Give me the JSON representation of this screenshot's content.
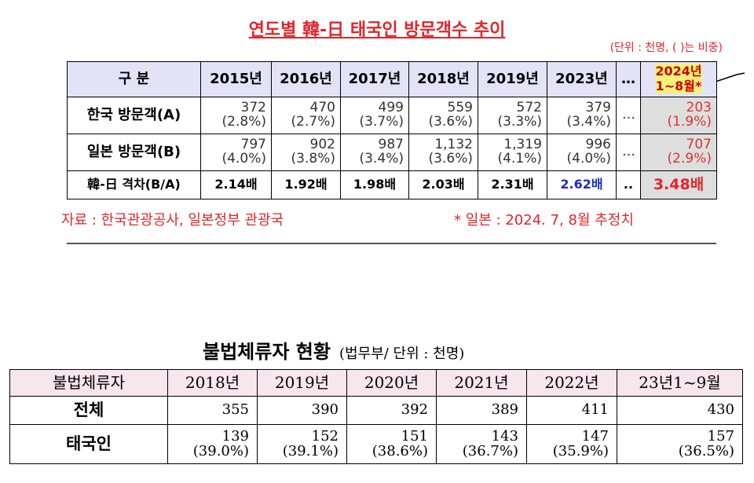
{
  "table1": {
    "title": "연도별 韓-日 태국인 방문객수 추이",
    "unit": "(단위 : 천명, ( )는 비중)",
    "header": [
      "구 분",
      "2015년",
      "2016년",
      "2017년",
      "2018년",
      "2019년",
      "2023년",
      "…",
      "2024년 1~8월*"
    ],
    "rows": [
      {
        "label": "한국 방문객(A)",
        "cells": [
          {
            "count": "372",
            "share": "(2.8%)"
          },
          {
            "count": "470",
            "share": "(2.7%)"
          },
          {
            "count": "499",
            "share": "(3.7%)"
          },
          {
            "count": "559",
            "share": "(3.6%)"
          },
          {
            "count": "572",
            "share": "(3.3%)"
          },
          {
            "count": "379",
            "share": "(3.4%)"
          },
          "…",
          {
            "count": "203",
            "share": "(1.9%)"
          }
        ]
      },
      {
        "label": "일본 방문객(B)",
        "cells": [
          {
            "count": "797",
            "share": "(4.0%)"
          },
          {
            "count": "902",
            "share": "(3.8%)"
          },
          {
            "count": "987",
            "share": "(3.4%)"
          },
          {
            "count": "1,132",
            "share": "(3.6%)"
          },
          {
            "count": "1,319",
            "share": "(4.1%)"
          },
          {
            "count": "996",
            "share": "(4.0%)"
          },
          "…",
          {
            "count": "707",
            "share": "(2.9%)"
          }
        ]
      },
      {
        "label": "韓-日 격차(B/A)",
        "cells": [
          "2.14배",
          "1.92배",
          "1.98배",
          "2.03배",
          "2.31배",
          "2.62배",
          "..",
          "3.48배"
        ]
      }
    ],
    "source": "자료 : 한국관광공사, 일본정부 관광국",
    "note": "* 일본 : 2024. 7, 8월 추정치"
  },
  "table2": {
    "title": "불법체류자 현황",
    "subtitle": "(법무부/ 단위 : 천명)",
    "header": [
      "불법체류자",
      "2018년",
      "2019년",
      "2020년",
      "2021년",
      "2022년",
      "23년1~9월"
    ],
    "rows": [
      {
        "label": "전체",
        "cells": [
          "355",
          "390",
          "392",
          "389",
          "411",
          "430"
        ]
      },
      {
        "label": "태국인",
        "cells": [
          {
            "count": "139",
            "share": "(39.0%)"
          },
          {
            "count": "152",
            "share": "(39.1%)"
          },
          {
            "count": "151",
            "share": "(38.6%)"
          },
          {
            "count": "143",
            "share": "(36.7%)"
          },
          {
            "count": "147",
            "share": "(35.9%)"
          },
          {
            "count": "157",
            "share": "(36.5%)"
          }
        ]
      }
    ]
  }
}
